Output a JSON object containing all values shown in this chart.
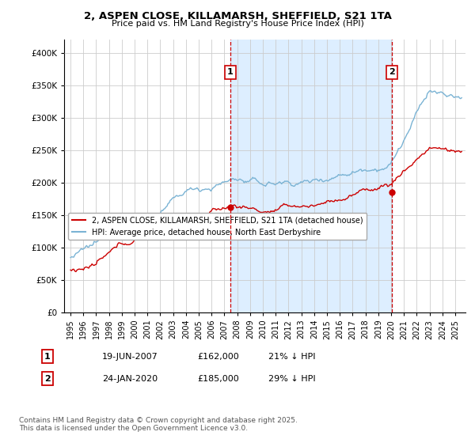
{
  "title_line1": "2, ASPEN CLOSE, KILLAMARSH, SHEFFIELD, S21 1TA",
  "title_line2": "Price paid vs. HM Land Registry's House Price Index (HPI)",
  "legend_label1": "2, ASPEN CLOSE, KILLAMARSH, SHEFFIELD, S21 1TA (detached house)",
  "legend_label2": "HPI: Average price, detached house, North East Derbyshire",
  "annotation1_label": "1",
  "annotation1_date": "19-JUN-2007",
  "annotation1_price": "£162,000",
  "annotation1_hpi": "21% ↓ HPI",
  "annotation2_label": "2",
  "annotation2_date": "24-JAN-2020",
  "annotation2_price": "£185,000",
  "annotation2_hpi": "29% ↓ HPI",
  "footer": "Contains HM Land Registry data © Crown copyright and database right 2025.\nThis data is licensed under the Open Government Licence v3.0.",
  "sale1_year": 2007.46,
  "sale1_price": 162000,
  "sale2_year": 2020.07,
  "sale2_price": 185000,
  "line1_color": "#cc0000",
  "line2_color": "#7ab3d4",
  "shade_color": "#ddeeff",
  "dashed_color": "#cc0000",
  "background_color": "#ffffff",
  "ylim_min": 0,
  "ylim_max": 420000,
  "xlim_min": 1994.5,
  "xlim_max": 2025.8
}
